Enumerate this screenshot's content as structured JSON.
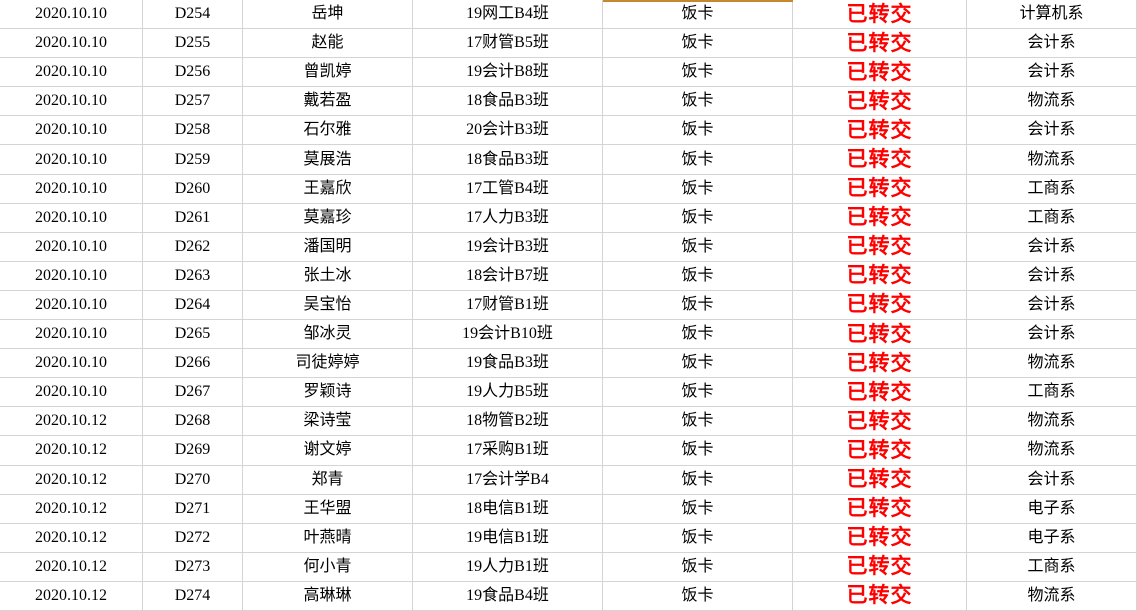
{
  "colors": {
    "status_text": "#FF0000",
    "accent_border": "#C8862E",
    "gridline": "#D4D4D4",
    "text": "#000000",
    "background": "#FFFFFF"
  },
  "accent": {
    "description": "orange top border on first visible row, item column",
    "target_row": 0,
    "target_col": 4
  },
  "table": {
    "status_col": 5,
    "columns": [
      {
        "key": "date"
      },
      {
        "key": "id"
      },
      {
        "key": "name"
      },
      {
        "key": "class"
      },
      {
        "key": "item"
      },
      {
        "key": "status"
      },
      {
        "key": "department"
      }
    ],
    "rows": [
      [
        "2020.10.10",
        "D254",
        "岳坤",
        "19网工B4班",
        "饭卡",
        "已转交",
        "计算机系"
      ],
      [
        "2020.10.10",
        "D255",
        "赵能",
        "17财管B5班",
        "饭卡",
        "已转交",
        "会计系"
      ],
      [
        "2020.10.10",
        "D256",
        "曾凯婷",
        "19会计B8班",
        "饭卡",
        "已转交",
        "会计系"
      ],
      [
        "2020.10.10",
        "D257",
        "戴若盈",
        "18食品B3班",
        "饭卡",
        "已转交",
        "物流系"
      ],
      [
        "2020.10.10",
        "D258",
        "石尔雅",
        "20会计B3班",
        "饭卡",
        "已转交",
        "会计系"
      ],
      [
        "2020.10.10",
        "D259",
        "莫展浩",
        "18食品B3班",
        "饭卡",
        "已转交",
        "物流系"
      ],
      [
        "2020.10.10",
        "D260",
        "王嘉欣",
        "17工管B4班",
        "饭卡",
        "已转交",
        "工商系"
      ],
      [
        "2020.10.10",
        "D261",
        "莫嘉珍",
        "17人力B3班",
        "饭卡",
        "已转交",
        "工商系"
      ],
      [
        "2020.10.10",
        "D262",
        "潘国明",
        "19会计B3班",
        "饭卡",
        "已转交",
        "会计系"
      ],
      [
        "2020.10.10",
        "D263",
        "张土冰",
        "18会计B7班",
        "饭卡",
        "已转交",
        "会计系"
      ],
      [
        "2020.10.10",
        "D264",
        "吴宝怡",
        "17财管B1班",
        "饭卡",
        "已转交",
        "会计系"
      ],
      [
        "2020.10.10",
        "D265",
        "邹冰灵",
        "19会计B10班",
        "饭卡",
        "已转交",
        "会计系"
      ],
      [
        "2020.10.10",
        "D266",
        "司徒婷婷",
        "19食品B3班",
        "饭卡",
        "已转交",
        "物流系"
      ],
      [
        "2020.10.10",
        "D267",
        "罗颖诗",
        "19人力B5班",
        "饭卡",
        "已转交",
        "工商系"
      ],
      [
        "2020.10.12",
        "D268",
        "梁诗莹",
        "18物管B2班",
        "饭卡",
        "已转交",
        "物流系"
      ],
      [
        "2020.10.12",
        "D269",
        "谢文婷",
        "17采购B1班",
        "饭卡",
        "已转交",
        "物流系"
      ],
      [
        "2020.10.12",
        "D270",
        "郑青",
        "17会计学B4",
        "饭卡",
        "已转交",
        "会计系"
      ],
      [
        "2020.10.12",
        "D271",
        "王华盟",
        "18电信B1班",
        "饭卡",
        "已转交",
        "电子系"
      ],
      [
        "2020.10.12",
        "D272",
        "叶燕晴",
        "19电信B1班",
        "饭卡",
        "已转交",
        "电子系"
      ],
      [
        "2020.10.12",
        "D273",
        "何小青",
        "19人力B1班",
        "饭卡",
        "已转交",
        "工商系"
      ],
      [
        "2020.10.12",
        "D274",
        "高琳琳",
        "19食品B4班",
        "饭卡",
        "已转交",
        "物流系"
      ]
    ]
  }
}
